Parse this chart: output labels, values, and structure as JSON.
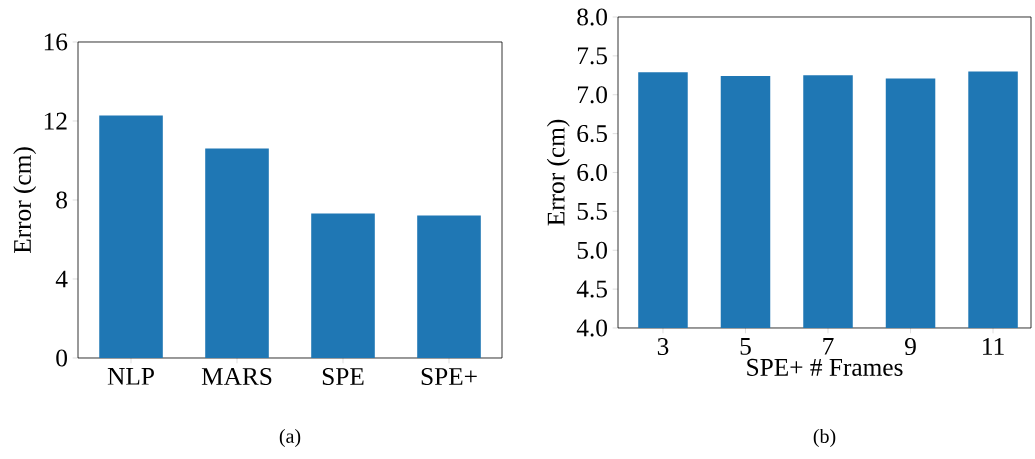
{
  "chart_data": [
    {
      "type": "bar",
      "ylabel": "Error (cm)",
      "categories": [
        "NLP",
        "MARS",
        "SPE",
        "SPE+"
      ],
      "values": [
        12.28,
        10.61,
        7.32,
        7.21
      ],
      "color": "#1f77b4",
      "ylim": [
        0,
        16
      ],
      "yticks": [
        0,
        4,
        8,
        12,
        16
      ],
      "annotations": [
        "(a)"
      ]
    },
    {
      "type": "bar",
      "xlabel": "SPE+ # Frames",
      "ylabel": "Error (cm)",
      "categories": [
        "3",
        "5",
        "7",
        "9",
        "11"
      ],
      "values": [
        7.29,
        7.24,
        7.25,
        7.21,
        7.3
      ],
      "color": "#1f77b4",
      "ylim": [
        4,
        8
      ],
      "yticks": [
        {
          "value": 4,
          "label": "4.0"
        },
        {
          "value": 4.5,
          "label": "4.5"
        },
        {
          "value": 5,
          "label": "5.0"
        },
        {
          "value": 5.5,
          "label": "5.5"
        },
        {
          "value": 6,
          "label": "6.0"
        },
        {
          "value": 6.5,
          "label": "6.5"
        },
        {
          "value": 7,
          "label": "7.0"
        },
        {
          "value": 7.5,
          "label": "7.5"
        },
        {
          "value": 8,
          "label": "8.0"
        }
      ],
      "annotations": [
        "(b)"
      ]
    }
  ]
}
